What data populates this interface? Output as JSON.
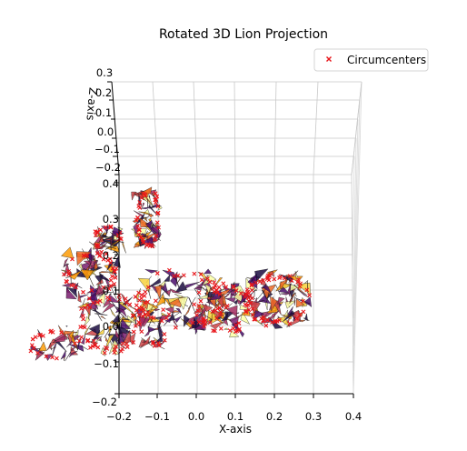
{
  "title": "Rotated 3D Lion Projection",
  "legend": {
    "label": "Circumcenters",
    "placement": "top-right",
    "marker_color": "#e8161b",
    "marker": "x"
  },
  "axes": {
    "x": {
      "label": "X-axis",
      "ticks": [
        "−0.2",
        "−0.1",
        "0.0",
        "0.1",
        "0.2",
        "0.3",
        "0.4"
      ]
    },
    "y": {
      "label": "",
      "ticks": [
        "−0.2",
        "0.4",
        "0.3",
        "0.2",
        "0.1",
        "0.0",
        "−0.1"
      ]
    },
    "z": {
      "label": "Z-axis",
      "ticks": [
        "0.3",
        "0.2",
        "0.1",
        "0.0",
        "−0.1",
        "−0.2"
      ]
    }
  },
  "chart_data": {
    "type": "scatter",
    "projection": "3d",
    "title": "Rotated 3D Lion Projection",
    "xlabel": "X-axis",
    "zlabel": "Z-axis",
    "xlim": [
      -0.2,
      0.4
    ],
    "ylim": [
      -0.2,
      0.4
    ],
    "zlim": [
      -0.2,
      0.3
    ],
    "grid": true,
    "colormap": [
      "#1b0c41",
      "#4a0c6b",
      "#781c6d",
      "#a52c60",
      "#cf4446",
      "#ed6925",
      "#fb9b06",
      "#f7d13d",
      "#fcffa4"
    ],
    "series": [
      {
        "name": "Circumcenters",
        "marker": "x",
        "color": "#e8161b"
      }
    ]
  }
}
